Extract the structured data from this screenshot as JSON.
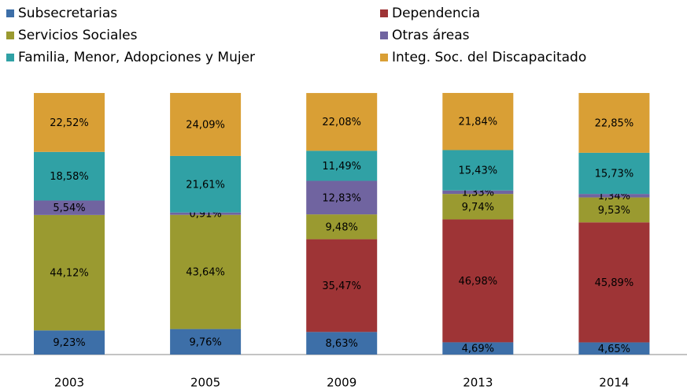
{
  "chart_data": {
    "type": "stacked_bar",
    "categories": [
      "2003",
      "2005",
      "2009",
      "2013",
      "2014"
    ],
    "series": [
      {
        "name": "Subsecretarias",
        "color": "#3d6fa8",
        "values": [
          9.23,
          9.76,
          8.63,
          4.69,
          4.65
        ],
        "value_labels": [
          "9,23%",
          "9,76%",
          "8,63%",
          "4,69%",
          "4,65%"
        ]
      },
      {
        "name": "Dependencia",
        "color": "#9e3436",
        "values": [
          null,
          null,
          35.47,
          46.98,
          45.89
        ],
        "value_labels": [
          null,
          null,
          "35,47%",
          "46,98%",
          "45,89%"
        ]
      },
      {
        "name": "Servicios Sociales",
        "color": "#9a9a30",
        "values": [
          44.12,
          43.64,
          9.48,
          9.74,
          9.53
        ],
        "value_labels": [
          "44,12%",
          "43,64%",
          "9,48%",
          "9,74%",
          "9,53%"
        ]
      },
      {
        "name": "Otras áreas",
        "color": "#7064a0",
        "values": [
          5.54,
          0.91,
          12.83,
          1.33,
          1.34
        ],
        "value_labels": [
          "5,54%",
          "0,91%",
          "12,83%",
          "1,33%",
          "1,34%"
        ]
      },
      {
        "name": "Familia, Menor, Adopciones y Mujer",
        "color": "#30a1a5",
        "values": [
          18.58,
          21.61,
          11.49,
          15.43,
          15.73
        ],
        "value_labels": [
          "18,58%",
          "21,61%",
          "11,49%",
          "15,43%",
          "15,73%"
        ]
      },
      {
        "name": "Integ. Soc. del Discapacitado",
        "color": "#d99f35",
        "values": [
          22.52,
          24.09,
          22.08,
          21.84,
          22.85
        ],
        "value_labels": [
          "22,52%",
          "24,09%",
          "22,08%",
          "21,84%",
          "22,85%"
        ]
      }
    ],
    "ylim": [
      0,
      100
    ],
    "legend": "top"
  }
}
